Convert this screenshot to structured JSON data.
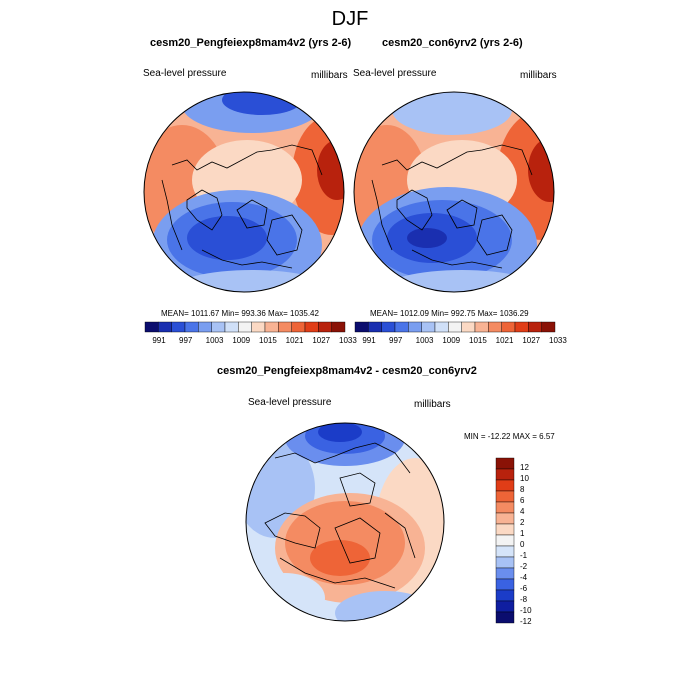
{
  "page": {
    "title": "DJF"
  },
  "panel_a": {
    "title": "cesm20_Pengfeiexp8mam4v2 (yrs 2-6)",
    "left_label": "Sea-level pressure",
    "right_label": "millibars",
    "stats": "MEAN= 1011.67  Min= 993.36  Max= 1035.42"
  },
  "panel_b": {
    "title": "cesm20_con6yrv2 (yrs 2-6)",
    "left_label": "Sea-level pressure",
    "right_label": "millibars",
    "stats": "MEAN= 1012.09  Min= 992.75  Max= 1036.29"
  },
  "panel_c": {
    "title": "cesm20_Pengfeiexp8mam4v2 - cesm20_con6yrv2",
    "left_label": "Sea-level pressure",
    "right_label": "millibars",
    "minmax": "MIN = -12.22 MAX =   6.57"
  },
  "colorbar_top": {
    "colors": [
      "#0b0d6e",
      "#1a2fb0",
      "#2a4fd6",
      "#4a74e8",
      "#7a9ef0",
      "#a8c2f5",
      "#d0e0f8",
      "#f3f3f3",
      "#fbd9c4",
      "#f8b394",
      "#f48b62",
      "#ee6437",
      "#e03d17",
      "#b8220d",
      "#8a1206"
    ],
    "labels": [
      "991",
      "997",
      "1003",
      "1009",
      "1015",
      "1021",
      "1027",
      "1033"
    ]
  },
  "colorbar_diff": {
    "colors": [
      "#0b0d6e",
      "#0f1ea0",
      "#1b3cc8",
      "#3a62e2",
      "#6a8eee",
      "#a8c2f5",
      "#d5e4f9",
      "#f3f3f3",
      "#fbd9c4",
      "#f8b394",
      "#f48b62",
      "#ee6437",
      "#e03d17",
      "#b8220d",
      "#8a1206"
    ],
    "labels": [
      "12",
      "10",
      "8",
      "6",
      "4",
      "2",
      "1",
      "0",
      "-1",
      "-2",
      "-4",
      "-6",
      "-8",
      "-10",
      "-12"
    ]
  }
}
